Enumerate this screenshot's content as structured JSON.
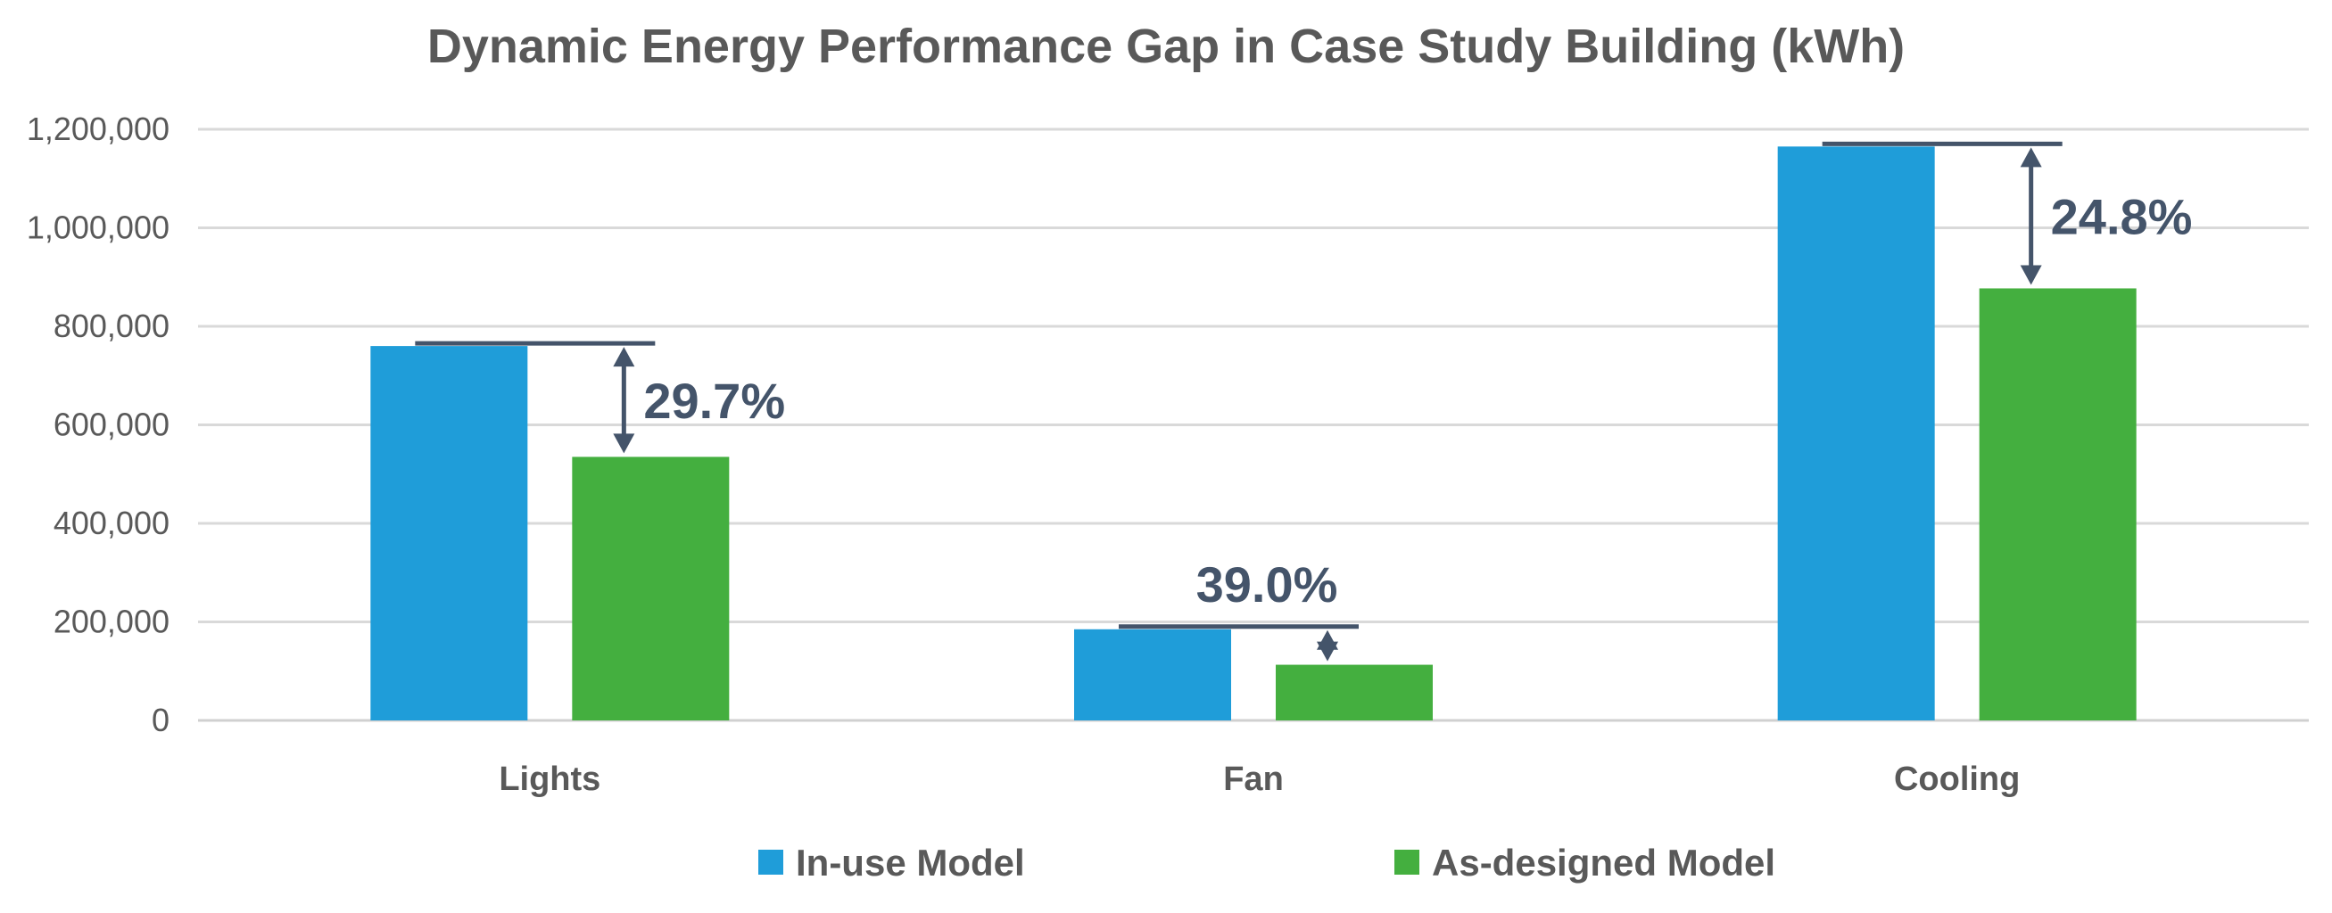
{
  "chart_data": {
    "type": "bar",
    "title": "Dynamic Energy Performance Gap in Case Study Building (kWh)",
    "xlabel": "",
    "ylabel": "",
    "categories": [
      "Lights",
      "Fan",
      "Cooling"
    ],
    "series": [
      {
        "name": "In-use Model",
        "color": "#1F9DD9",
        "values": [
          760000,
          185000,
          1165000
        ]
      },
      {
        "name": "As-designed Model",
        "color": "#44AF3F",
        "values": [
          535000,
          113000,
          877000
        ]
      }
    ],
    "ylim": [
      0,
      1200000
    ],
    "yticks": [
      0,
      200000,
      400000,
      600000,
      800000,
      1000000,
      1200000
    ],
    "ytick_labels": [
      "0",
      "200,000",
      "400,000",
      "600,000",
      "800,000",
      "1,000,000",
      "1,200,000"
    ],
    "gap_annotations": [
      {
        "category": "Lights",
        "label": "29.7%"
      },
      {
        "category": "Fan",
        "label": "39.0%"
      },
      {
        "category": "Cooling",
        "label": "24.8%"
      }
    ],
    "annotation_color": "#44546A",
    "grid": true,
    "legend_position": "bottom"
  }
}
